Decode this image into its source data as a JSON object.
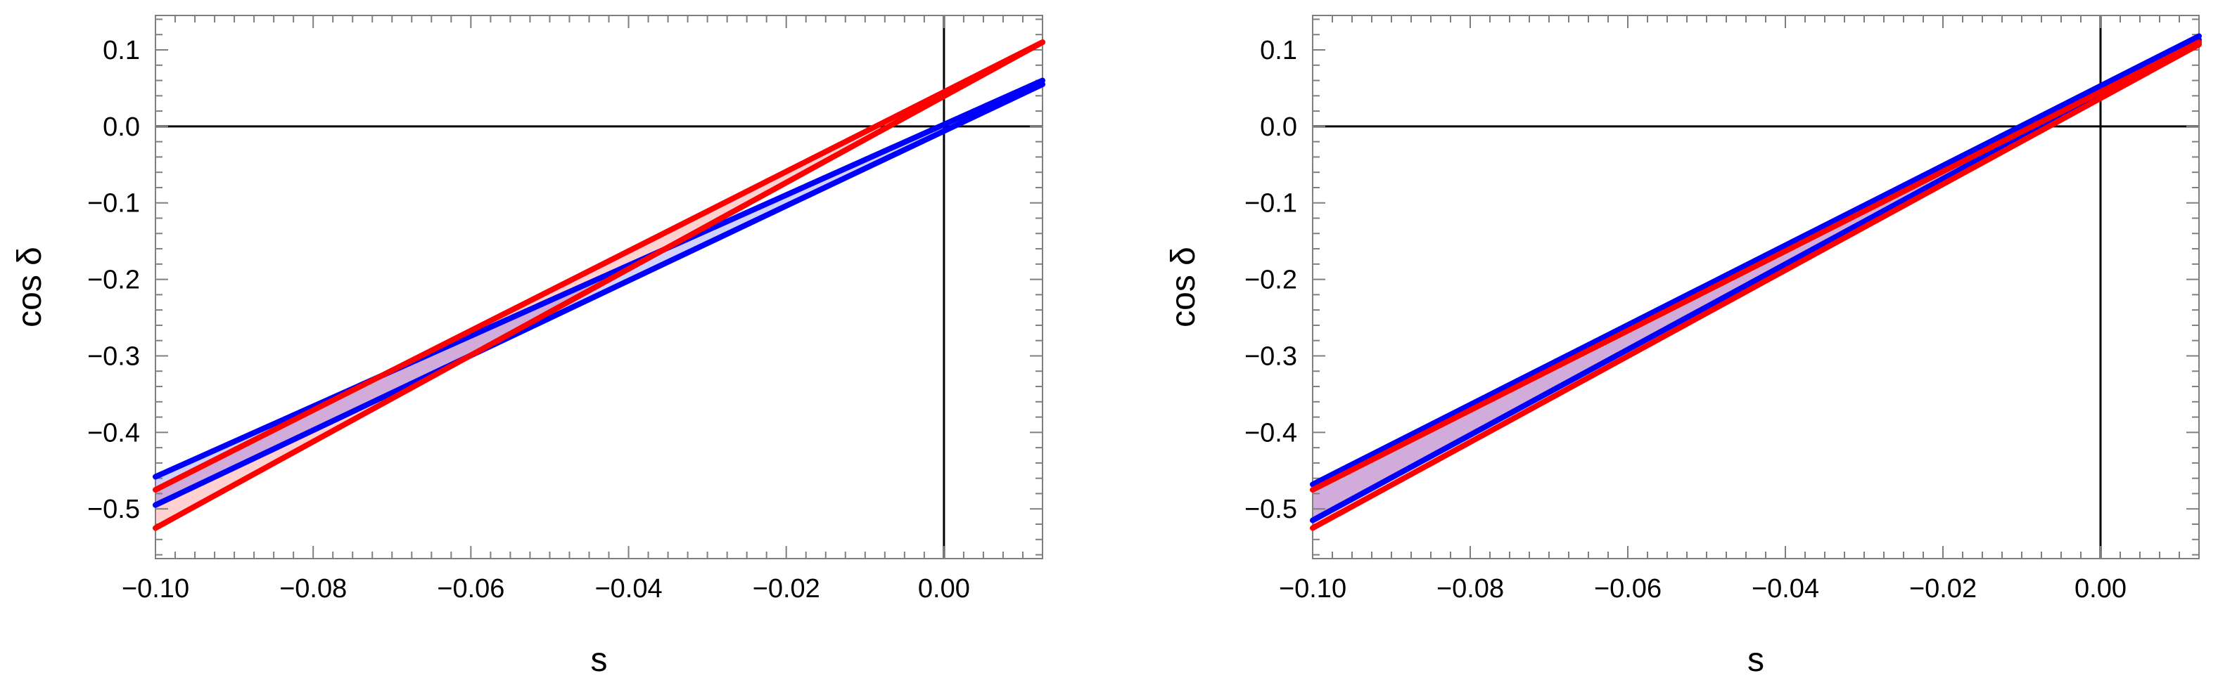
{
  "chart_data": [
    {
      "type": "line",
      "xlabel": "s",
      "ylabel": "cos δ",
      "xlim": [
        -0.1,
        0.0125
      ],
      "ylim": [
        -0.565,
        0.145
      ],
      "x_ticks": [
        -0.1,
        -0.08,
        -0.06,
        -0.04,
        -0.02,
        0.0
      ],
      "x_tick_labels": [
        "−0.10",
        "−0.08",
        "−0.06",
        "−0.04",
        "−0.02",
        "0.00"
      ],
      "y_ticks": [
        0.1,
        0.0,
        -0.1,
        -0.2,
        -0.3,
        -0.4,
        -0.5
      ],
      "y_tick_labels": [
        "0.1",
        "0.0",
        "−0.1",
        "−0.2",
        "−0.3",
        "−0.4",
        "−0.5"
      ],
      "reference_lines": {
        "x": 0,
        "y": 0
      },
      "grid": false,
      "series": [
        {
          "color": "#0000ff",
          "x": [
            -0.1,
            0.0125
          ],
          "y": [
            -0.458,
            0.06
          ]
        },
        {
          "color": "#0000ff",
          "x": [
            -0.1,
            0.0125
          ],
          "y": [
            -0.495,
            0.055
          ]
        },
        {
          "color": "#ff0000",
          "x": [
            -0.1,
            0.0125
          ],
          "y": [
            -0.475,
            0.11
          ]
        },
        {
          "color": "#ff0000",
          "x": [
            -0.1,
            0.0125
          ],
          "y": [
            -0.525,
            0.11
          ]
        }
      ],
      "bands": [
        {
          "color": "#ff0000",
          "between": [
            2,
            3
          ]
        },
        {
          "color": "#0000ff",
          "between": [
            0,
            1
          ]
        }
      ]
    },
    {
      "type": "line",
      "xlabel": "s",
      "ylabel": "cos δ",
      "xlim": [
        -0.1,
        0.0125
      ],
      "ylim": [
        -0.565,
        0.145
      ],
      "x_ticks": [
        -0.1,
        -0.08,
        -0.06,
        -0.04,
        -0.02,
        0.0
      ],
      "x_tick_labels": [
        "−0.10",
        "−0.08",
        "−0.06",
        "−0.04",
        "−0.02",
        "0.00"
      ],
      "y_ticks": [
        0.1,
        0.0,
        -0.1,
        -0.2,
        -0.3,
        -0.4,
        -0.5
      ],
      "y_tick_labels": [
        "0.1",
        "0.0",
        "−0.1",
        "−0.2",
        "−0.3",
        "−0.4",
        "−0.5"
      ],
      "reference_lines": {
        "x": 0,
        "y": 0
      },
      "grid": false,
      "series": [
        {
          "color": "#0000ff",
          "x": [
            -0.1,
            0.0125
          ],
          "y": [
            -0.468,
            0.118
          ]
        },
        {
          "color": "#0000ff",
          "x": [
            -0.1,
            0.0125
          ],
          "y": [
            -0.515,
            0.113
          ]
        },
        {
          "color": "#ff0000",
          "x": [
            -0.1,
            0.0125
          ],
          "y": [
            -0.475,
            0.11
          ]
        },
        {
          "color": "#ff0000",
          "x": [
            -0.1,
            0.0125
          ],
          "y": [
            -0.525,
            0.107
          ]
        }
      ],
      "bands": [
        {
          "color": "#ff0000",
          "between": [
            2,
            3
          ]
        },
        {
          "color": "#0000ff",
          "between": [
            0,
            1
          ]
        }
      ]
    }
  ]
}
